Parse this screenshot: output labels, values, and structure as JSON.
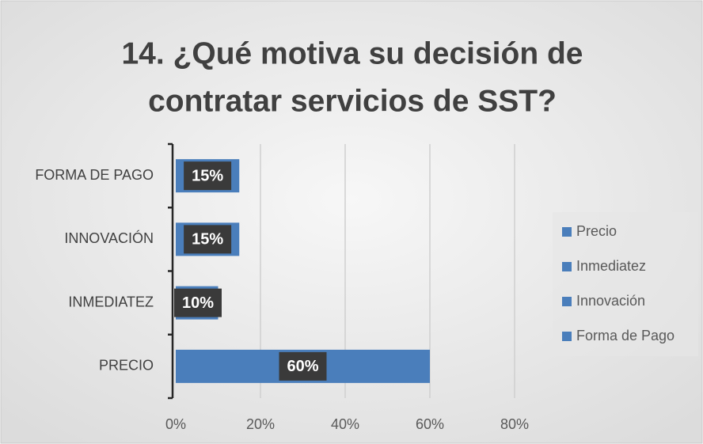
{
  "chart_data": {
    "type": "bar",
    "orientation": "horizontal",
    "stacked": true,
    "title": [
      "14. ¿Qué motiva su decisión de",
      "contratar servicios de SST?"
    ],
    "categories": [
      "PRECIO",
      "INMEDIATEZ",
      "INNOVACIÓN",
      "FORMA DE PAGO"
    ],
    "series": [
      {
        "name": "Precio",
        "color": "#4a7ebb",
        "values": [
          60,
          null,
          null,
          null
        ],
        "value_labels": [
          "60%",
          null,
          null,
          null
        ]
      },
      {
        "name": "Inmediatez",
        "color": "#4a7ebb",
        "values": [
          null,
          10,
          null,
          null
        ],
        "value_labels": [
          null,
          "10%",
          null,
          null
        ]
      },
      {
        "name": "Innovación",
        "color": "#4a7ebb",
        "values": [
          null,
          null,
          15,
          null
        ],
        "value_labels": [
          null,
          null,
          "15%",
          null
        ]
      },
      {
        "name": "Forma de Pago",
        "color": "#4a7ebb",
        "values": [
          null,
          null,
          null,
          15
        ],
        "value_labels": [
          null,
          null,
          null,
          "15%"
        ]
      }
    ],
    "xlim": [
      0,
      80
    ],
    "xticks": [
      {
        "value": 0,
        "label": "0%"
      },
      {
        "value": 20,
        "label": "20%"
      },
      {
        "value": 40,
        "label": "40%"
      },
      {
        "value": 60,
        "label": "60%"
      },
      {
        "value": 80,
        "label": "80%"
      }
    ],
    "grid": true,
    "legend": "right"
  }
}
